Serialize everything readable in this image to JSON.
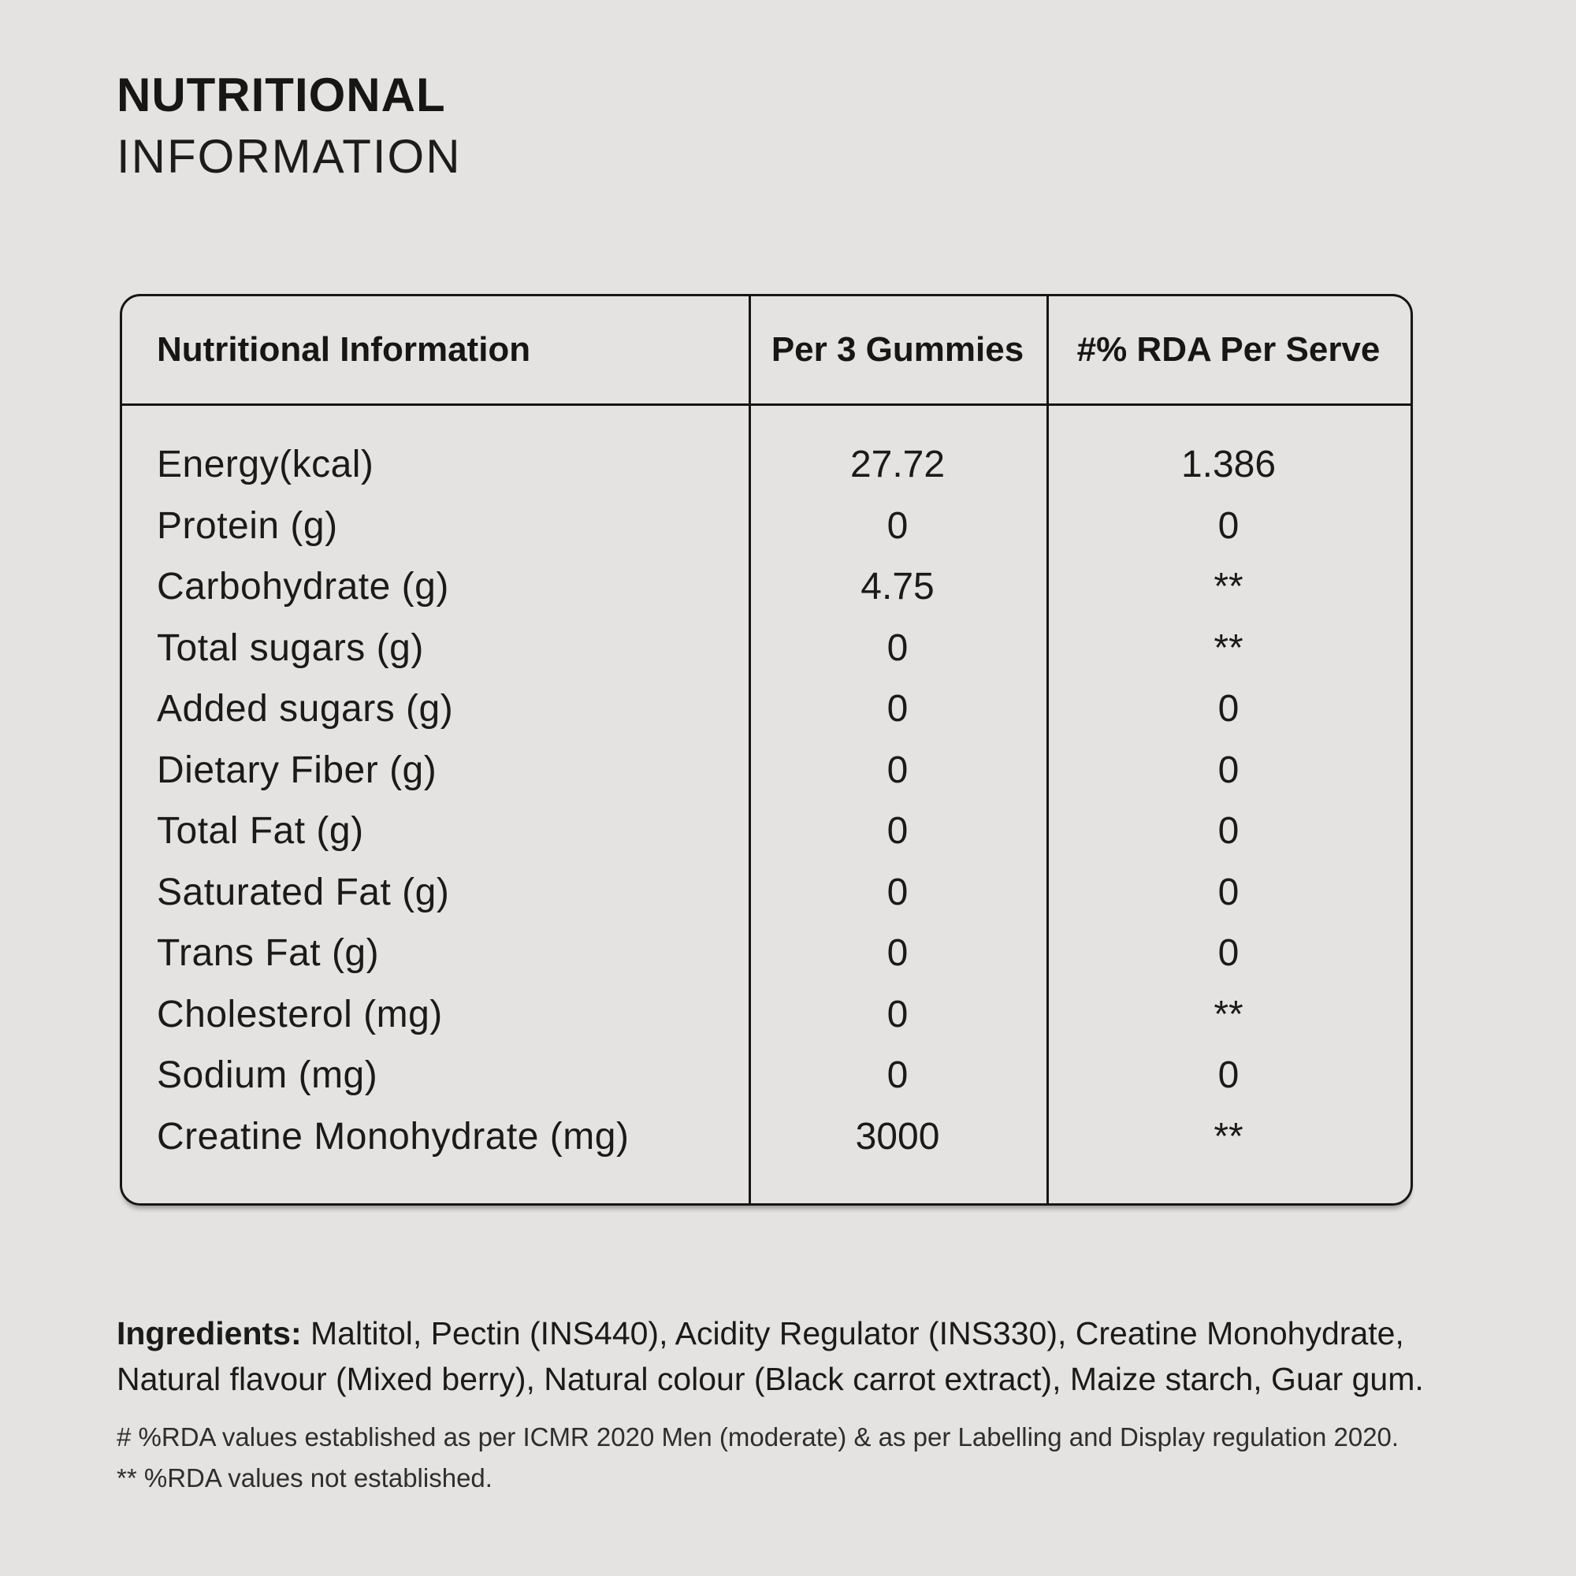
{
  "colors": {
    "background": "#e4e3e1",
    "text": "#1a1a1a",
    "border": "#161616"
  },
  "header": {
    "title_line1": "NUTRITIONAL",
    "title_line2": "INFORMATION"
  },
  "table": {
    "headers": {
      "col1": "Nutritional Information",
      "col2": "Per 3 Gummies",
      "col3": "#% RDA Per Serve"
    },
    "rows": [
      {
        "label": "Energy(kcal)",
        "per_3_gummies": "27.72",
        "rda_per_serve": "1.386"
      },
      {
        "label": "Protein (g)",
        "per_3_gummies": "0",
        "rda_per_serve": "0"
      },
      {
        "label": "Carbohydrate (g)",
        "per_3_gummies": "4.75",
        "rda_per_serve": "**"
      },
      {
        "label": "Total sugars (g)",
        "per_3_gummies": "0",
        "rda_per_serve": "**"
      },
      {
        "label": "Added sugars (g)",
        "per_3_gummies": "0",
        "rda_per_serve": "0"
      },
      {
        "label": "Dietary Fiber (g)",
        "per_3_gummies": "0",
        "rda_per_serve": "0"
      },
      {
        "label": "Total Fat (g)",
        "per_3_gummies": "0",
        "rda_per_serve": "0"
      },
      {
        "label": "Saturated Fat (g)",
        "per_3_gummies": "0",
        "rda_per_serve": "0"
      },
      {
        "label": "Trans Fat (g)",
        "per_3_gummies": "0",
        "rda_per_serve": "0"
      },
      {
        "label": "Cholesterol (mg)",
        "per_3_gummies": "0",
        "rda_per_serve": "**"
      },
      {
        "label": "Sodium (mg)",
        "per_3_gummies": "0",
        "rda_per_serve": "0"
      },
      {
        "label": "Creatine Monohydrate (mg)",
        "per_3_gummies": "3000",
        "rda_per_serve": "**"
      }
    ]
  },
  "ingredients": {
    "label": "Ingredients:",
    "text": " Maltitol, Pectin (INS440), Acidity Regulator (INS330), Creatine Monohydrate, Natural flavour (Mixed berry), Natural colour (Black carrot extract), Maize starch, Guar gum."
  },
  "footnotes": {
    "line1": "# %RDA values established as per ICMR 2020 Men (moderate) & as per Labelling and Display regulation 2020.",
    "line2": "** %RDA values not established."
  }
}
